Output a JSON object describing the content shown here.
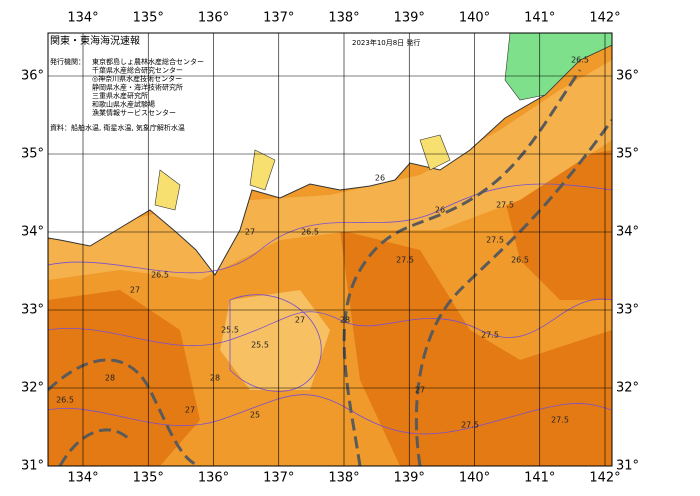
{
  "map": {
    "title": "関東・東海海況速報",
    "issue_date": "2023年10月8日 発行",
    "publishers_heading": "発行機関：",
    "publishers": [
      "東京都島しょ農林水産総合センター",
      "千葉県水産総合研究センター",
      "◎神奈川県水産技術センター",
      "静岡県水産・海洋技術研究所",
      "三重県水産研究所",
      "和歌山県水産試験場",
      "漁業情報サービスセンター"
    ],
    "source": "資料：船舶水温, 衛星水温, 気象庁解析水温",
    "lon_labels": [
      "134°",
      "135°",
      "136°",
      "137°",
      "138°",
      "139°",
      "140°",
      "141°",
      "142°"
    ],
    "lat_labels": [
      "36°",
      "35°",
      "34°",
      "33°",
      "32°",
      "31°"
    ],
    "contour_labels": [
      "26.5",
      "27",
      "27.5",
      "28",
      "25.5",
      "26",
      "25"
    ]
  }
}
